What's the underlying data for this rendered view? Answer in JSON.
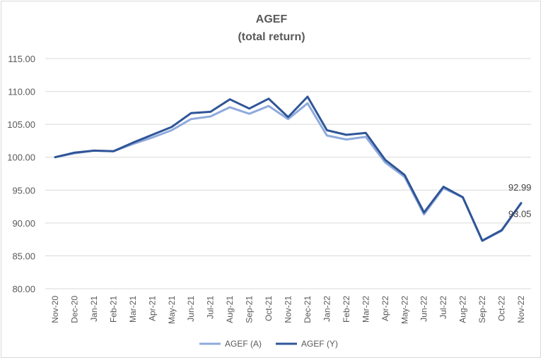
{
  "chart_data": {
    "type": "line",
    "title": "AGEF",
    "subtitle": "(total return)",
    "xlabel": "",
    "ylabel": "",
    "ylim": [
      80,
      115
    ],
    "yticks": [
      "80.00",
      "85.00",
      "90.00",
      "95.00",
      "100.00",
      "105.00",
      "110.00",
      "115.00"
    ],
    "grid": true,
    "legend_position": "bottom",
    "categories": [
      "Nov-20",
      "Dec-20",
      "Jan-21",
      "Feb-21",
      "Mar-21",
      "Apr-21",
      "May-21",
      "Jun-21",
      "Jul-21",
      "Aug-21",
      "Sep-21",
      "Oct-21",
      "Nov-21",
      "Dec-21",
      "Jan-22",
      "Feb-22",
      "Mar-22",
      "Apr-22",
      "May-22",
      "Jun-22",
      "Jul-22",
      "Aug-22",
      "Sep-22",
      "Oct-22",
      "Nov-22"
    ],
    "series": [
      {
        "name": "AGEF (A)",
        "color": "#8faadc",
        "values": [
          100.0,
          100.6,
          101.0,
          100.9,
          102.0,
          103.0,
          104.1,
          105.8,
          106.2,
          107.6,
          106.6,
          107.8,
          105.8,
          108.2,
          103.3,
          102.7,
          103.1,
          99.2,
          97.0,
          91.3,
          95.3,
          93.9,
          87.3,
          88.8,
          93.05
        ],
        "end_label": "93.05"
      },
      {
        "name": "AGEF (Y)",
        "color": "#2f5597",
        "values": [
          100.0,
          100.7,
          101.0,
          100.9,
          102.2,
          103.4,
          104.6,
          106.7,
          106.9,
          108.8,
          107.4,
          108.9,
          106.1,
          109.2,
          104.1,
          103.4,
          103.7,
          99.6,
          97.3,
          91.6,
          95.5,
          93.9,
          87.3,
          88.9,
          92.99
        ],
        "end_label": "92.99"
      }
    ]
  }
}
